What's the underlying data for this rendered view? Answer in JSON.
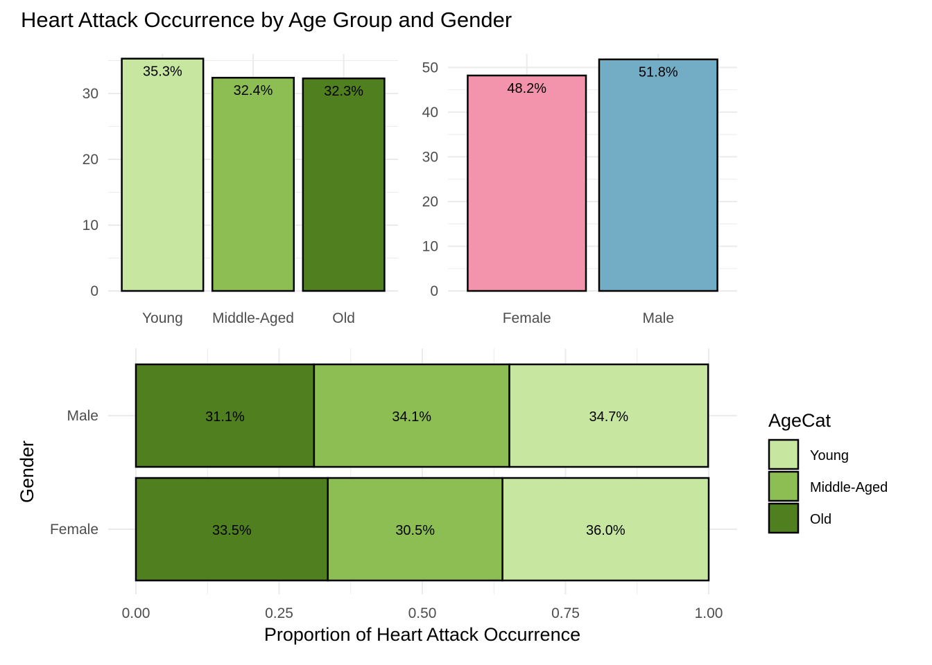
{
  "title": "Heart Attack Occurrence by Age Group and Gender",
  "chart_data": [
    {
      "type": "bar",
      "categories": [
        "Young",
        "Middle-Aged",
        "Old"
      ],
      "values": [
        35.3,
        32.4,
        32.3
      ],
      "data_labels": [
        "35.3%",
        "32.4%",
        "32.3%"
      ],
      "colors": [
        "#C7E6A0",
        "#8DBE54",
        "#4F7F1F"
      ],
      "ylim": [
        0,
        36
      ],
      "yticks": [
        0,
        10,
        20,
        30
      ],
      "xlabel": "",
      "ylabel": "",
      "grid": true
    },
    {
      "type": "bar",
      "categories": [
        "Female",
        "Male"
      ],
      "values": [
        48.2,
        51.8
      ],
      "data_labels": [
        "48.2%",
        "51.8%"
      ],
      "colors": [
        "#F394AC",
        "#73ADC5"
      ],
      "ylim": [
        0,
        53
      ],
      "yticks": [
        0,
        10,
        20,
        30,
        40,
        50
      ],
      "xlabel": "",
      "ylabel": "",
      "grid": true
    },
    {
      "type": "bar",
      "orientation": "horizontal",
      "stacked": true,
      "categories": [
        "Male",
        "Female"
      ],
      "series": [
        {
          "name": "Old",
          "values": [
            0.311,
            0.335
          ],
          "labels": [
            "31.1%",
            "33.5%"
          ],
          "color": "#4F7F1F"
        },
        {
          "name": "Middle-Aged",
          "values": [
            0.341,
            0.305
          ],
          "labels": [
            "34.1%",
            "30.5%"
          ],
          "color": "#8DBE54"
        },
        {
          "name": "Young",
          "values": [
            0.347,
            0.36
          ],
          "labels": [
            "34.7%",
            "36.0%"
          ],
          "color": "#C7E6A0"
        }
      ],
      "xlim": [
        0,
        1
      ],
      "xticks": [
        "0.00",
        "0.25",
        "0.50",
        "0.75",
        "1.00"
      ],
      "xlabel": "Proportion of Heart Attack Occurrence",
      "ylabel": "Gender",
      "legend": {
        "title": "AgeCat",
        "position": "right",
        "entries": [
          {
            "name": "Young",
            "color": "#C7E6A0"
          },
          {
            "name": "Middle-Aged",
            "color": "#8DBE54"
          },
          {
            "name": "Old",
            "color": "#4F7F1F"
          }
        ]
      },
      "grid": true
    }
  ]
}
